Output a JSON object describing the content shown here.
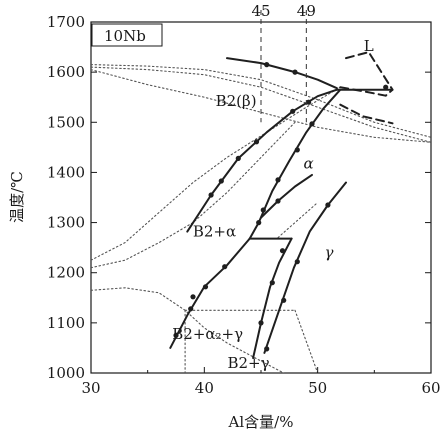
{
  "chart_data": {
    "type": "line",
    "title": "",
    "xlabel": "Al含量/%",
    "ylabel": "温度/℃",
    "xlim": [
      30,
      60
    ],
    "ylim": [
      1000,
      1700
    ],
    "xticks": [
      30,
      40,
      50,
      60
    ],
    "yticks": [
      1000,
      1100,
      1200,
      1300,
      1400,
      1500,
      1600,
      1700
    ],
    "top_ticks": [
      45,
      49
    ],
    "inset_label": "10Nb",
    "grid": false,
    "legend": "none",
    "colors": {
      "solid": "#1f1f1f",
      "dotted": "#555555",
      "marker": "#1f1f1f"
    },
    "region_labels": [
      {
        "text": "L",
        "x": 54.5,
        "y": 1642
      },
      {
        "text": "B2(β)",
        "x": 42.8,
        "y": 1532
      },
      {
        "text": "α",
        "x": 49.2,
        "y": 1408
      },
      {
        "text": "B2+α",
        "x": 40.9,
        "y": 1272
      },
      {
        "text": "γ",
        "x": 51.0,
        "y": 1230
      },
      {
        "text": "B2+α₂+γ",
        "x": 40.3,
        "y": 1068
      },
      {
        "text": "B2+γ",
        "x": 43.9,
        "y": 1010
      }
    ],
    "series": [
      {
        "style": "solid",
        "x": [
          42.0,
          45.0,
          48.0,
          50.0,
          51.7
        ],
        "y": [
          1628,
          1618,
          1600,
          1585,
          1568
        ]
      },
      {
        "style": "solid",
        "x": [
          38.5,
          40.6,
          43.0,
          45.5,
          47.8,
          50.0,
          51.7
        ],
        "y": [
          1282,
          1355,
          1428,
          1480,
          1522,
          1552,
          1565
        ]
      },
      {
        "style": "solid",
        "x": [
          44.0,
          44.8,
          46.0,
          47.5,
          49.0,
          50.5,
          52.0
        ],
        "y": [
          1268,
          1300,
          1363,
          1423,
          1480,
          1527,
          1565
        ]
      },
      {
        "style": "solid",
        "x": [
          51.7,
          56.6
        ],
        "y": [
          1565,
          1565
        ]
      },
      {
        "style": "dashed",
        "x": [
          52.0,
          54.0,
          56.0,
          56.6
        ],
        "y": [
          1570,
          1562,
          1553,
          1565
        ]
      },
      {
        "style": "dashed",
        "x": [
          52.0,
          54.0,
          56.6
        ],
        "y": [
          1535,
          1512,
          1498
        ]
      },
      {
        "style": "dashed",
        "x": [
          52.5,
          54.5,
          56.6
        ],
        "y": [
          1628,
          1640,
          1565
        ]
      },
      {
        "style": "solid",
        "x": [
          45.0,
          46.5,
          48.0,
          49.5
        ],
        "y": [
          1310,
          1343,
          1372,
          1395
        ]
      },
      {
        "style": "solid",
        "x": [
          44.0,
          47.7
        ],
        "y": [
          1268,
          1268
        ]
      },
      {
        "style": "solid",
        "x": [
          37.0,
          38.5,
          40.0,
          42.0,
          44.0
        ],
        "y": [
          1050,
          1115,
          1172,
          1215,
          1268
        ]
      },
      {
        "style": "solid",
        "x": [
          44.3,
          45.0,
          45.8,
          46.6,
          47.7
        ],
        "y": [
          1030,
          1100,
          1172,
          1220,
          1268
        ]
      },
      {
        "style": "solid",
        "x": [
          45.3,
          46.6,
          47.9,
          49.3,
          50.9,
          52.5
        ],
        "y": [
          1040,
          1125,
          1210,
          1282,
          1335,
          1380
        ]
      },
      {
        "style": "dotted",
        "x": [
          30.0,
          35.0,
          40.0,
          45.0,
          50.0,
          55.0,
          60.0
        ],
        "y": [
          1605,
          1575,
          1550,
          1520,
          1490,
          1470,
          1460
        ]
      },
      {
        "style": "dotted",
        "x": [
          30.0,
          35.0,
          40.0,
          45.0,
          50.0,
          55.0,
          60.0
        ],
        "y": [
          1610,
          1605,
          1595,
          1570,
          1530,
          1490,
          1460
        ]
      },
      {
        "style": "dotted",
        "x": [
          30.0,
          35.0,
          40.0,
          45.0,
          50.0,
          55.0,
          60.0
        ],
        "y": [
          1615,
          1612,
          1605,
          1585,
          1545,
          1500,
          1470
        ]
      },
      {
        "style": "dotted",
        "x": [
          30.0,
          33.0,
          36.0,
          39.0,
          42.0,
          45.5,
          49.0,
          52.0
        ],
        "y": [
          1225,
          1260,
          1320,
          1380,
          1430,
          1480,
          1530,
          1570
        ]
      },
      {
        "style": "dotted",
        "x": [
          30.0,
          33.0,
          36.0,
          39.0,
          42.0,
          45.0,
          48.0
        ],
        "y": [
          1210,
          1225,
          1260,
          1300,
          1360,
          1430,
          1500
        ]
      },
      {
        "style": "dotted",
        "x": [
          30.0,
          33.0,
          36.0,
          38.3,
          40.0,
          42.0,
          44.5,
          47.0
        ],
        "y": [
          1165,
          1170,
          1160,
          1125,
          1090,
          1060,
          1030,
          1000
        ]
      },
      {
        "style": "dotted",
        "x": [
          38.3,
          48.0
        ],
        "y": [
          1125,
          1125
        ]
      },
      {
        "style": "dotted",
        "x": [
          38.3,
          38.3
        ],
        "y": [
          1125,
          1000
        ]
      },
      {
        "style": "dotted",
        "x": [
          48.0,
          50.0
        ],
        "y": [
          1125,
          1000
        ]
      },
      {
        "style": "dotted",
        "x": [
          46.5,
          50.0
        ],
        "y": [
          1270,
          1340
        ]
      }
    ],
    "markers": [
      {
        "x": 45.5,
        "y": 1615
      },
      {
        "x": 48.0,
        "y": 1600
      },
      {
        "x": 40.6,
        "y": 1355
      },
      {
        "x": 41.5,
        "y": 1383
      },
      {
        "x": 43.0,
        "y": 1428
      },
      {
        "x": 44.6,
        "y": 1461
      },
      {
        "x": 47.8,
        "y": 1522
      },
      {
        "x": 49.2,
        "y": 1540
      },
      {
        "x": 44.8,
        "y": 1300
      },
      {
        "x": 45.2,
        "y": 1325
      },
      {
        "x": 46.5,
        "y": 1385
      },
      {
        "x": 48.2,
        "y": 1445
      },
      {
        "x": 49.5,
        "y": 1497
      },
      {
        "x": 46.5,
        "y": 1343
      },
      {
        "x": 37.5,
        "y": 1075
      },
      {
        "x": 38.8,
        "y": 1128
      },
      {
        "x": 40.1,
        "y": 1172
      },
      {
        "x": 41.8,
        "y": 1212
      },
      {
        "x": 39.0,
        "y": 1152
      },
      {
        "x": 45.0,
        "y": 1100
      },
      {
        "x": 46.0,
        "y": 1180
      },
      {
        "x": 46.9,
        "y": 1244
      },
      {
        "x": 45.5,
        "y": 1048
      },
      {
        "x": 47.0,
        "y": 1145
      },
      {
        "x": 48.2,
        "y": 1222
      },
      {
        "x": 50.9,
        "y": 1335
      },
      {
        "x": 56.0,
        "y": 1570
      }
    ]
  }
}
